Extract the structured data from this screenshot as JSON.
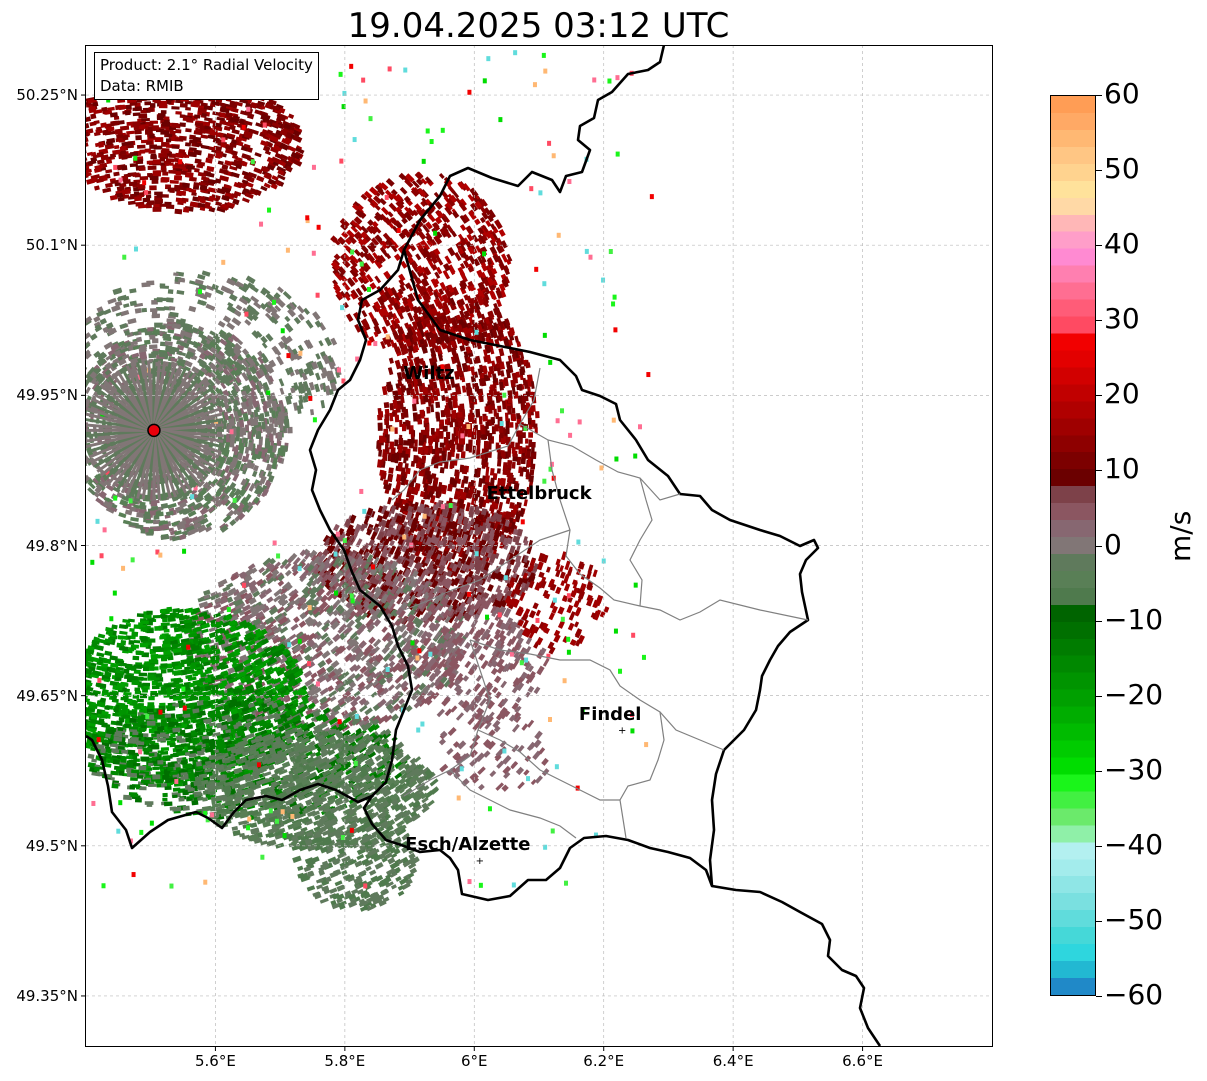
{
  "title": "19.04.2025 03:12 UTC",
  "info_box": {
    "product": "Product: 2.1° Radial Velocity",
    "data_source": "Data: RMIB"
  },
  "axes": {
    "x_ticks": [
      "5.6°E",
      "5.8°E",
      "6°E",
      "6.2°E",
      "6.4°E",
      "6.6°E"
    ],
    "y_ticks": [
      "50.25°N",
      "50.1°N",
      "49.95°N",
      "49.8°N",
      "49.65°N",
      "49.5°N",
      "49.35°N"
    ],
    "lon_range": [
      5.4,
      6.8
    ],
    "lat_range": [
      49.3,
      50.3
    ],
    "grid": true
  },
  "cities": [
    {
      "name": "Wiltz",
      "lon": 5.93,
      "lat": 49.97
    },
    {
      "name": "Ettelbruck",
      "lon": 6.1,
      "lat": 49.85
    },
    {
      "name": "Findel",
      "lon": 6.21,
      "lat": 49.63
    },
    {
      "name": "Esch/Alzette",
      "lon": 5.99,
      "lat": 49.5
    }
  ],
  "radar_site": {
    "lon": 5.505,
    "lat": 49.915,
    "color": "#e8000b"
  },
  "colorbar": {
    "unit": "m/s",
    "vmin": -60,
    "vmax": 60,
    "ticks": [
      "60",
      "50",
      "40",
      "30",
      "20",
      "10",
      "0",
      "−10",
      "−20",
      "−30",
      "−40",
      "−50",
      "−60"
    ],
    "colors_top_to_bottom": [
      "#ff9d55",
      "#ffa965",
      "#ffb873",
      "#ffc684",
      "#ffd38f",
      "#ffe29b",
      "#ffd9a6",
      "#ffb7b7",
      "#ff9ec9",
      "#ff8ad2",
      "#ff7fb0",
      "#ff6e92",
      "#ff5c78",
      "#ff4a62",
      "#f20000",
      "#e30000",
      "#d20000",
      "#c10000",
      "#b00000",
      "#9f0000",
      "#8e0000",
      "#7c0000",
      "#6b0000",
      "#7d4149",
      "#8b5661",
      "#876771",
      "#817676",
      "#5f7a5c",
      "#597f56",
      "#4f7a4d",
      "#006400",
      "#007000",
      "#007c00",
      "#008800",
      "#009400",
      "#00a000",
      "#00ad00",
      "#00bb00",
      "#00cc00",
      "#00dd00",
      "#1af51a",
      "#42f042",
      "#6bea6b",
      "#8ff0a8",
      "#b3f0f0",
      "#a3ecec",
      "#8fe6e6",
      "#7ae0e0",
      "#60dcdc",
      "#45d8d8",
      "#2ed6de",
      "#22b8d2",
      "#2089c8"
    ]
  }
}
